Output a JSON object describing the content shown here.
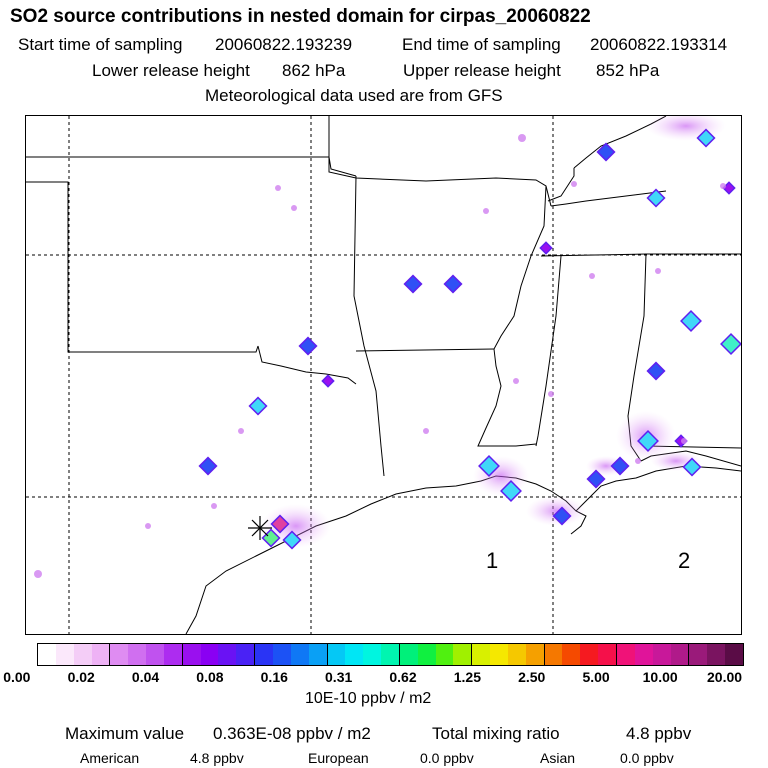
{
  "header": {
    "title": "SO2 source contributions in nested domain for cirpas_20060822",
    "start_label": "Start time of sampling",
    "start_value": "20060822.193239",
    "end_label": "End time of sampling",
    "end_value": "20060822.193314",
    "lower_label": "Lower release height",
    "lower_value": "862 hPa",
    "upper_label": "Upper release height",
    "upper_value": "852 hPa",
    "met": "Meteorological data used are from GFS"
  },
  "map": {
    "region_labels": [
      "1",
      "2"
    ],
    "receptor_icon": "asterisk-marker"
  },
  "colorbar": {
    "ticks": [
      "0.00",
      "0.02",
      "0.04",
      "0.08",
      "0.16",
      "0.31",
      "0.62",
      "1.25",
      "2.50",
      "5.00",
      "10.00",
      "20.00"
    ],
    "unit": "10E-10 ppbv / m2",
    "colors": [
      "#ffffff",
      "#fbe8fb",
      "#f4cdf7",
      "#eeb2f5",
      "#df8cf2",
      "#d06ff0",
      "#c052ef",
      "#ad2cf0",
      "#9a10ef",
      "#8a00f3",
      "#6a12f4",
      "#4a22f5",
      "#2a34f5",
      "#1c52f5",
      "#0f78f5",
      "#0aa0f5",
      "#05c8f5",
      "#00e6f5",
      "#00f5e0",
      "#00f5b0",
      "#00f07a",
      "#10f040",
      "#50f010",
      "#a0f000",
      "#d8f000",
      "#f5e800",
      "#f5c800",
      "#f5a000",
      "#f57800",
      "#f54a00",
      "#f51a20",
      "#f5104a",
      "#f01278",
      "#e0149a",
      "#c8189a",
      "#b01a8a",
      "#9a1a7a",
      "#7a1460",
      "#5a0c46"
    ]
  },
  "footer": {
    "max_label": "Maximum value",
    "max_value": "0.363E-08 ppbv / m2",
    "total_label": "Total mixing ratio",
    "total_value": "4.8 ppbv",
    "american_label": "American",
    "american_value": "4.8 ppbv",
    "european_label": "European",
    "european_value": "0.0 ppbv",
    "asian_label": "Asian",
    "asian_value": "0.0 ppbv"
  }
}
